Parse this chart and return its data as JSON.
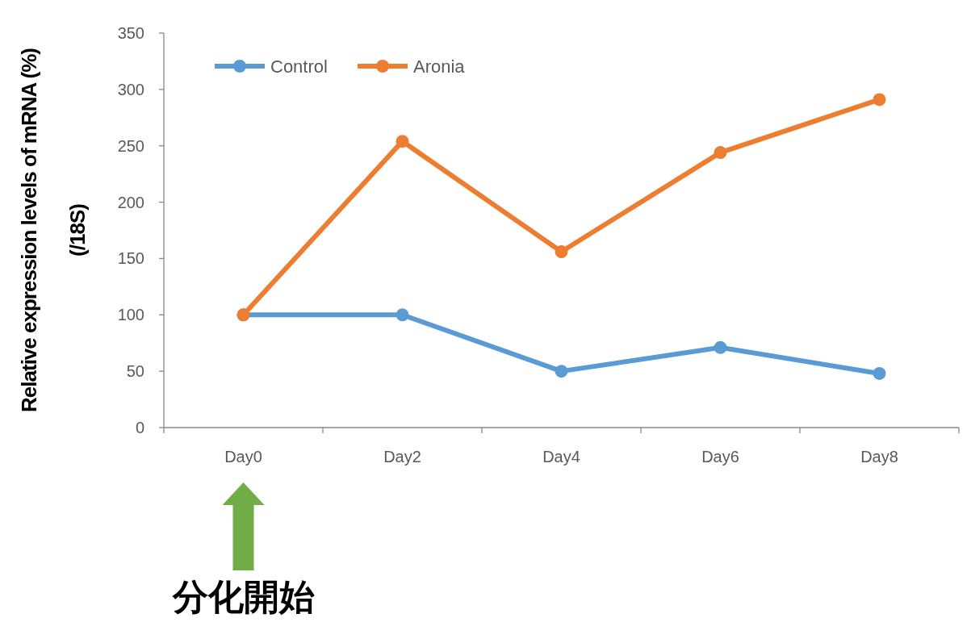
{
  "chart_data": {
    "type": "line",
    "ylabel": "Relative expression levels of mRNA (%)\n(/18S)",
    "categories": [
      "Day0",
      "Day2",
      "Day4",
      "Day6",
      "Day8"
    ],
    "series": [
      {
        "name": "Control",
        "color": "#5b9bd5",
        "values": [
          100,
          100,
          50,
          71,
          48
        ]
      },
      {
        "name": "Aronia",
        "color": "#ed7d31",
        "values": [
          100,
          254,
          156,
          244,
          291
        ]
      }
    ],
    "ylim": [
      0,
      350
    ],
    "yticks": [
      0,
      50,
      100,
      150,
      200,
      250,
      300,
      350
    ],
    "legend": "top left",
    "grid": false,
    "marker": "circle",
    "line_style": "solid",
    "annotations": [
      "分化開始"
    ]
  }
}
